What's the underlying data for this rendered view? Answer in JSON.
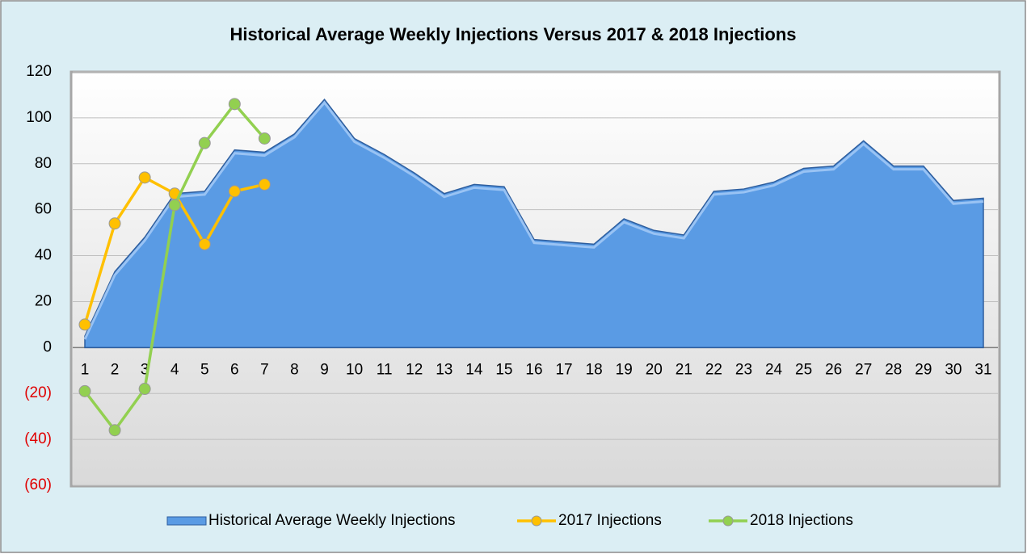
{
  "chart_data": {
    "type": "area_line",
    "title": "Historical Average Weekly Injections Versus 2017 & 2018 Injections",
    "categories": [
      "1",
      "2",
      "3",
      "4",
      "5",
      "6",
      "7",
      "8",
      "9",
      "10",
      "11",
      "12",
      "13",
      "14",
      "15",
      "16",
      "17",
      "18",
      "19",
      "20",
      "21",
      "22",
      "23",
      "24",
      "25",
      "26",
      "27",
      "28",
      "29",
      "30",
      "31"
    ],
    "series": [
      {
        "name": "Historical Average Weekly Injections",
        "color": "#5a9be4",
        "kind": "area",
        "values": [
          5,
          33,
          48,
          67,
          68,
          86,
          85,
          93,
          108,
          91,
          84,
          76,
          67,
          71,
          70,
          47,
          46,
          45,
          56,
          51,
          49,
          68,
          69,
          72,
          78,
          79,
          90,
          79,
          79,
          64,
          65
        ]
      },
      {
        "name": "2017 Injections",
        "color": "#ffc000",
        "kind": "line",
        "values": [
          10,
          54,
          74,
          67,
          45,
          68,
          71,
          null,
          null,
          null,
          null,
          null,
          null,
          null,
          null,
          null,
          null,
          null,
          null,
          null,
          null,
          null,
          null,
          null,
          null,
          null,
          null,
          null,
          null,
          null,
          null
        ]
      },
      {
        "name": "2018 Injections",
        "color": "#92d050",
        "kind": "line",
        "values": [
          -19,
          -36,
          -18,
          62,
          89,
          106,
          91,
          null,
          null,
          null,
          null,
          null,
          null,
          null,
          null,
          null,
          null,
          null,
          null,
          null,
          null,
          null,
          null,
          null,
          null,
          null,
          null,
          null,
          null,
          null,
          null
        ]
      }
    ],
    "ylim": [
      -60,
      120
    ],
    "yticks": [
      {
        "value": -60,
        "label": "(60)"
      },
      {
        "value": -40,
        "label": "(40)"
      },
      {
        "value": -20,
        "label": "(20)"
      },
      0,
      20,
      40,
      60,
      80,
      100,
      120
    ],
    "negative_tick_color": "#e00000",
    "grid": true,
    "legend": "bottom"
  }
}
